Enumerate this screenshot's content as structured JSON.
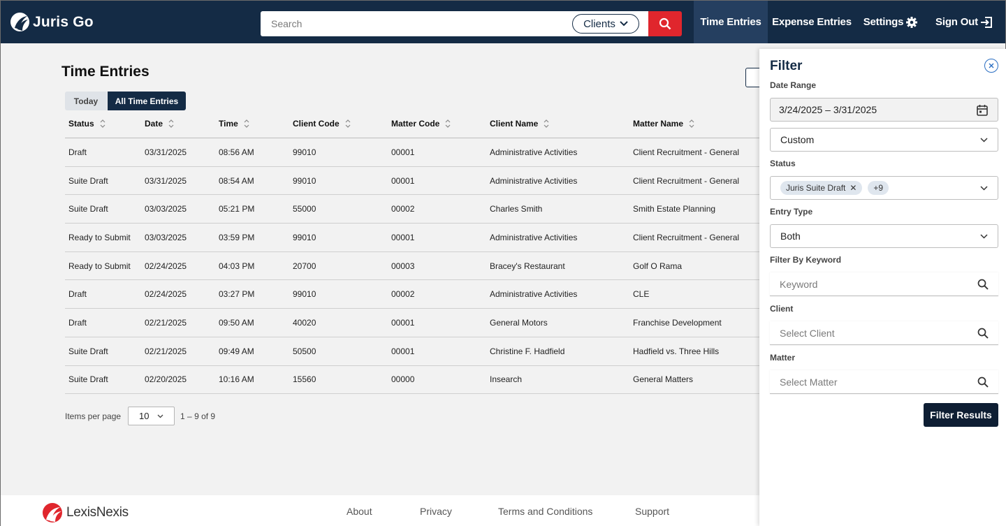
{
  "brand": {
    "app_name": "Juris Go",
    "footer_brand": "LexisNexis"
  },
  "colors": {
    "header_bg": "#142b45",
    "accent_red": "#e0262d",
    "primary_button": "#0e1e33"
  },
  "header": {
    "search_placeholder": "Search",
    "search_scope": "Clients",
    "nav": [
      "Time Entries",
      "Expense Entries",
      "Settings",
      "Sign Out"
    ],
    "icons": [
      "search-icon",
      "gear-icon",
      "sign-out-icon",
      "chevron-down-icon"
    ]
  },
  "main": {
    "title": "Time Entries",
    "tabs": [
      "Today",
      "All Time Entries"
    ],
    "active_tab": "All Time Entries",
    "columns": [
      "Status",
      "Date",
      "Time",
      "Client Code",
      "Matter Code",
      "Client Name",
      "Matter Name"
    ],
    "rows": [
      [
        "Draft",
        "03/31/2025",
        "08:56 AM",
        "99010",
        "00001",
        "Administrative Activities",
        "Client Recruitment - General"
      ],
      [
        "Suite Draft",
        "03/31/2025",
        "08:54 AM",
        "99010",
        "00001",
        "Administrative Activities",
        "Client Recruitment - General"
      ],
      [
        "Suite Draft",
        "03/03/2025",
        "05:21 PM",
        "55000",
        "00002",
        "Charles Smith",
        "Smith Estate Planning"
      ],
      [
        "Ready to Submit",
        "03/03/2025",
        "03:59 PM",
        "99010",
        "00001",
        "Administrative Activities",
        "Client Recruitment - General"
      ],
      [
        "Ready to Submit",
        "02/24/2025",
        "04:03 PM",
        "20700",
        "00003",
        "Bracey's Restaurant",
        "Golf O Rama"
      ],
      [
        "Draft",
        "02/24/2025",
        "03:27 PM",
        "99010",
        "00002",
        "Administrative Activities",
        "CLE"
      ],
      [
        "Draft",
        "02/21/2025",
        "09:50 AM",
        "40020",
        "00001",
        "General Motors",
        "Franchise Development"
      ],
      [
        "Suite Draft",
        "02/21/2025",
        "09:49 AM",
        "50500",
        "00001",
        "Christine F. Hadfield",
        "Hadfield vs. Three Hills"
      ],
      [
        "Suite Draft",
        "02/20/2025",
        "10:16 AM",
        "15560",
        "00000",
        "Insearch",
        "General Matters"
      ]
    ],
    "pager": {
      "label": "Items per page",
      "per_page": "10",
      "range": "1 – 9 of 9"
    }
  },
  "filter": {
    "title": "Filter",
    "date_range_label": "Date Range",
    "date_range_value": "3/24/2025 – 3/31/2025",
    "range_preset": "Custom",
    "status_label": "Status",
    "status_chip": "Juris Suite Draft",
    "status_more": "+9",
    "entry_type_label": "Entry Type",
    "entry_type_value": "Both",
    "keyword_label": "Filter By Keyword",
    "keyword_placeholder": "Keyword",
    "client_label": "Client",
    "client_placeholder": "Select Client",
    "matter_label": "Matter",
    "matter_placeholder": "Select Matter",
    "submit_label": "Filter Results"
  },
  "footer": {
    "links": [
      "About",
      "Privacy",
      "Terms and Conditions",
      "Support"
    ]
  }
}
